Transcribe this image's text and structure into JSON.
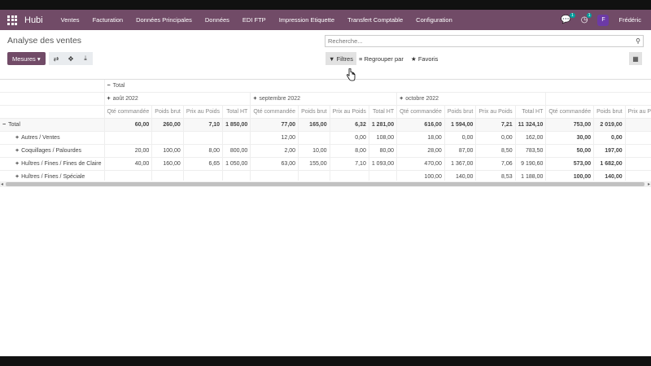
{
  "navbar": {
    "brand": "Hubi",
    "menu": [
      "Ventes",
      "Facturation",
      "Données Principales",
      "Données",
      "EDI FTP",
      "Impression Etiquette",
      "Transfert Comptable",
      "Configuration"
    ],
    "messages_count": "1",
    "activities_count": "1",
    "avatar_letter": "F",
    "user": "Frédéric"
  },
  "control_panel": {
    "title": "Analyse des ventes",
    "search_placeholder": "Recherche...",
    "measures_label": "Mesures",
    "filters_label": "Filtres",
    "groupby_label": "Regrouper par",
    "favorites_label": "Favoris"
  },
  "pivot": {
    "col_total_label": "Total",
    "months": [
      "août 2022",
      "septembre 2022",
      "octobre 2022"
    ],
    "measures": [
      "Qté commandée",
      "Poids brut",
      "Prix au Poids",
      "Total HT"
    ],
    "rows": [
      {
        "label": "Total",
        "sign": "−",
        "values": [
          "60,00",
          "260,00",
          "7,10",
          "1 850,00",
          "77,00",
          "165,00",
          "6,32",
          "1 281,00",
          "616,00",
          "1 594,00",
          "7,21",
          "11 324,10",
          "753,00",
          "2 019,00",
          "7,"
        ]
      },
      {
        "label": "Autres / Ventes",
        "sign": "+",
        "values": [
          "",
          "",
          "",
          "",
          "12,00",
          "",
          "0,00",
          "108,00",
          "18,00",
          "0,00",
          "0,00",
          "162,00",
          "30,00",
          "0,00",
          "0,"
        ]
      },
      {
        "label": "Coquillages / Palourdes",
        "sign": "+",
        "values": [
          "20,00",
          "100,00",
          "8,00",
          "800,00",
          "2,00",
          "10,00",
          "8,00",
          "80,00",
          "28,00",
          "87,00",
          "8,50",
          "783,50",
          "50,00",
          "197,00",
          "8,"
        ]
      },
      {
        "label": "Huîtres / Fines / Fines de Claire",
        "sign": "+",
        "values": [
          "40,00",
          "160,00",
          "6,65",
          "1 050,00",
          "63,00",
          "155,00",
          "7,10",
          "1 093,00",
          "470,00",
          "1 367,00",
          "7,06",
          "9 190,60",
          "573,00",
          "1 682,00",
          "7,"
        ]
      },
      {
        "label": "Huîtres / Fines / Spéciale",
        "sign": "+",
        "values": [
          "",
          "",
          "",
          "",
          "",
          "",
          "",
          "",
          "100,00",
          "140,00",
          "8,53",
          "1 188,00",
          "100,00",
          "140,00",
          "8,"
        ]
      }
    ]
  }
}
